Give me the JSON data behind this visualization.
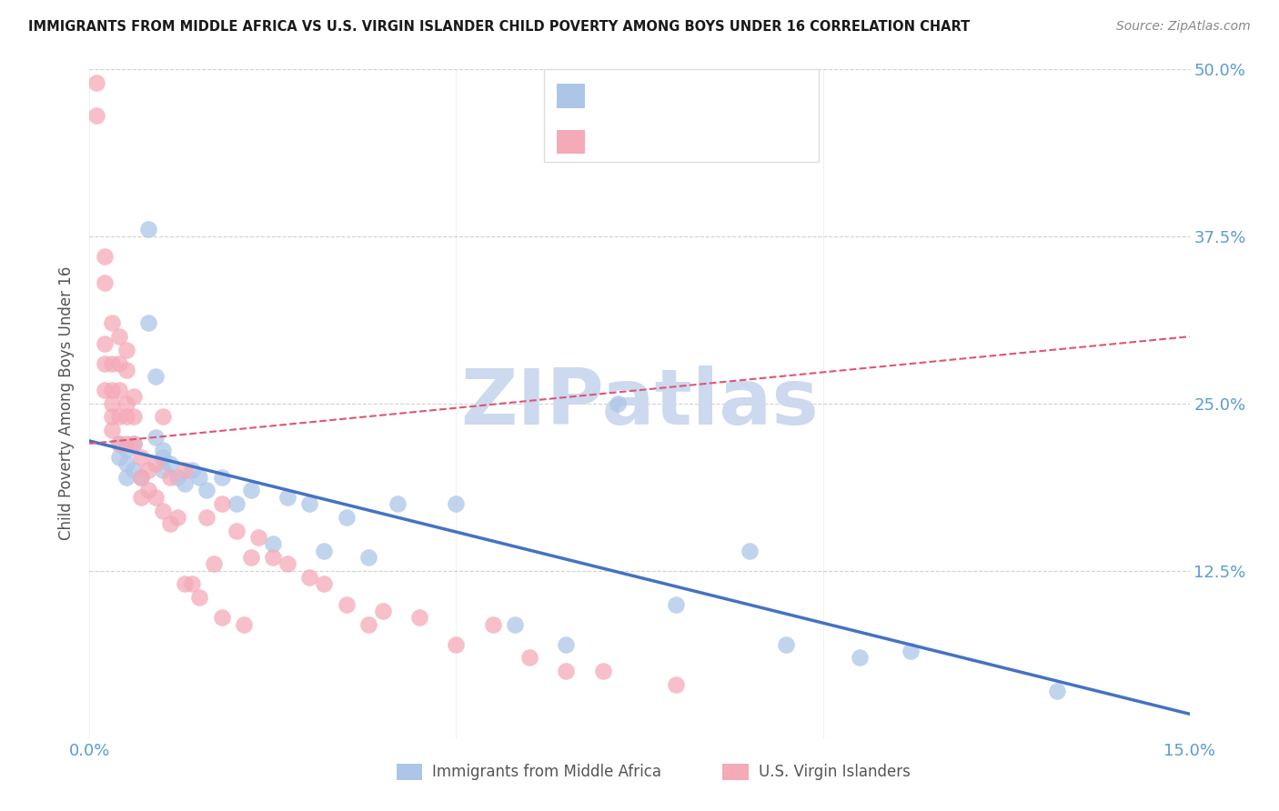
{
  "title": "IMMIGRANTS FROM MIDDLE AFRICA VS U.S. VIRGIN ISLANDER CHILD POVERTY AMONG BOYS UNDER 16 CORRELATION CHART",
  "source": "Source: ZipAtlas.com",
  "ylabel_label": "Child Poverty Among Boys Under 16",
  "legend_label1": "Immigrants from Middle Africa",
  "legend_label2": "U.S. Virgin Islanders",
  "watermark": "ZIPatlas",
  "xlim": [
    0.0,
    0.15
  ],
  "ylim": [
    0.0,
    0.5
  ],
  "blue_scatter_x": [
    0.004,
    0.004,
    0.005,
    0.005,
    0.005,
    0.006,
    0.006,
    0.007,
    0.008,
    0.008,
    0.009,
    0.009,
    0.01,
    0.01,
    0.01,
    0.011,
    0.012,
    0.013,
    0.014,
    0.015,
    0.016,
    0.018,
    0.02,
    0.022,
    0.025,
    0.027,
    0.03,
    0.032,
    0.035,
    0.038,
    0.042,
    0.05,
    0.058,
    0.065,
    0.072,
    0.08,
    0.09,
    0.095,
    0.105,
    0.112,
    0.132
  ],
  "blue_scatter_y": [
    0.22,
    0.21,
    0.215,
    0.205,
    0.195,
    0.22,
    0.2,
    0.195,
    0.38,
    0.31,
    0.27,
    0.225,
    0.215,
    0.21,
    0.2,
    0.205,
    0.195,
    0.19,
    0.2,
    0.195,
    0.185,
    0.195,
    0.175,
    0.185,
    0.145,
    0.18,
    0.175,
    0.14,
    0.165,
    0.135,
    0.175,
    0.175,
    0.085,
    0.07,
    0.25,
    0.1,
    0.14,
    0.07,
    0.06,
    0.065,
    0.035
  ],
  "pink_scatter_x": [
    0.001,
    0.001,
    0.002,
    0.002,
    0.002,
    0.002,
    0.002,
    0.003,
    0.003,
    0.003,
    0.003,
    0.003,
    0.003,
    0.004,
    0.004,
    0.004,
    0.004,
    0.004,
    0.005,
    0.005,
    0.005,
    0.005,
    0.005,
    0.006,
    0.006,
    0.006,
    0.007,
    0.007,
    0.007,
    0.008,
    0.008,
    0.009,
    0.009,
    0.01,
    0.01,
    0.011,
    0.011,
    0.012,
    0.013,
    0.013,
    0.014,
    0.015,
    0.016,
    0.017,
    0.018,
    0.018,
    0.02,
    0.021,
    0.022,
    0.023,
    0.025,
    0.027,
    0.03,
    0.032,
    0.035,
    0.038,
    0.04,
    0.045,
    0.05,
    0.055,
    0.06,
    0.065,
    0.07,
    0.08
  ],
  "pink_scatter_y": [
    0.49,
    0.465,
    0.36,
    0.34,
    0.295,
    0.28,
    0.26,
    0.31,
    0.28,
    0.26,
    0.25,
    0.24,
    0.23,
    0.3,
    0.28,
    0.26,
    0.24,
    0.22,
    0.29,
    0.275,
    0.25,
    0.24,
    0.22,
    0.255,
    0.24,
    0.22,
    0.21,
    0.195,
    0.18,
    0.2,
    0.185,
    0.205,
    0.18,
    0.24,
    0.17,
    0.195,
    0.16,
    0.165,
    0.2,
    0.115,
    0.115,
    0.105,
    0.165,
    0.13,
    0.175,
    0.09,
    0.155,
    0.085,
    0.135,
    0.15,
    0.135,
    0.13,
    0.12,
    0.115,
    0.1,
    0.085,
    0.095,
    0.09,
    0.07,
    0.085,
    0.06,
    0.05,
    0.05,
    0.04
  ],
  "blue_color": "#adc6e8",
  "pink_color": "#f5aab8",
  "blue_line_color": "#4472c4",
  "pink_line_color": "#e05575",
  "title_color": "#1a1a1a",
  "source_color": "#888888",
  "axis_color": "#5b9bd5",
  "legend_text_color": "#5b9bd5",
  "legend_rvalue_color": "#333333",
  "watermark_color": "#ccd9ee",
  "grid_color": "#cccccc",
  "background_color": "#ffffff",
  "blue_line_x0": 0.0,
  "blue_line_y0": 0.222,
  "blue_line_x1": 0.15,
  "blue_line_y1": 0.018,
  "pink_line_x0": 0.0,
  "pink_line_y0": 0.22,
  "pink_line_x1": 0.15,
  "pink_line_y1": 0.3
}
